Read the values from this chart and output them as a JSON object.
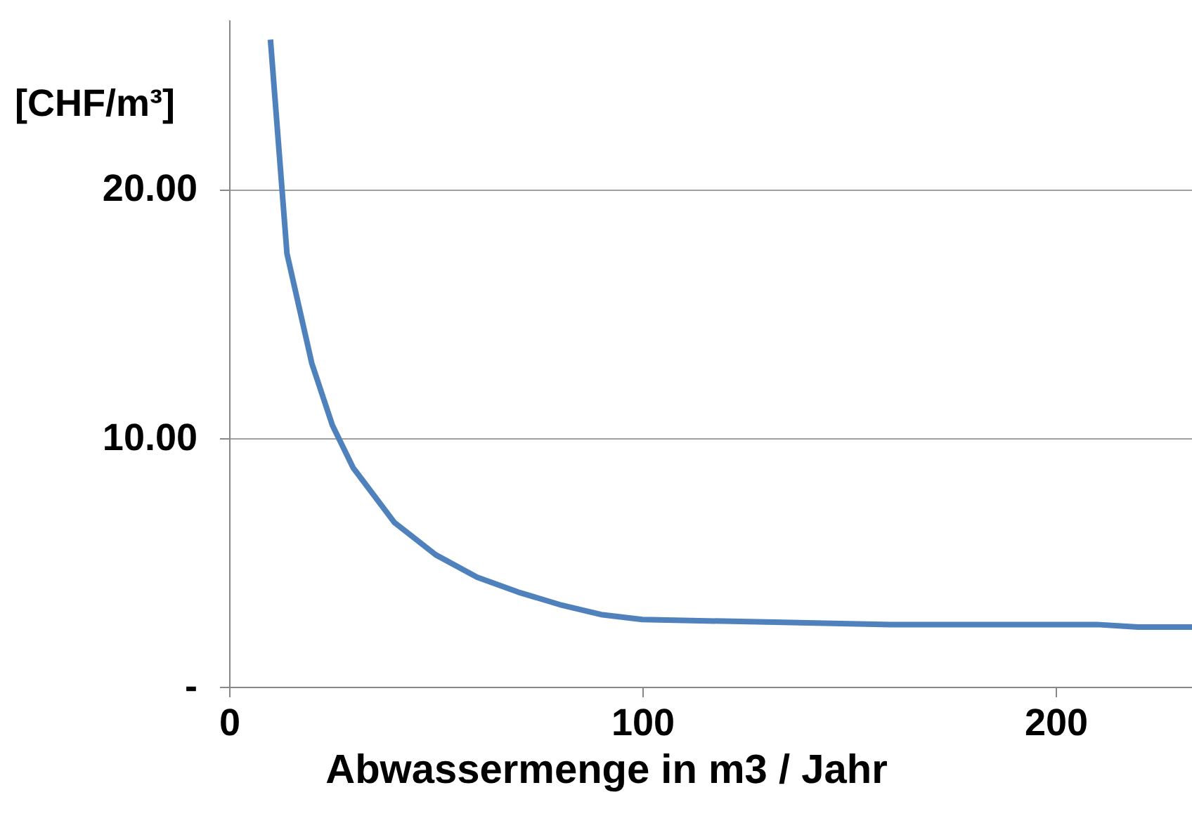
{
  "chart_data": {
    "type": "line",
    "xlabel": "Abwassermenge in m3 / Jahr",
    "ylabel": "[CHF/m³]",
    "x": [
      10,
      14,
      20,
      25,
      30,
      40,
      50,
      60,
      70,
      80,
      90,
      100,
      130,
      160,
      210,
      220,
      233
    ],
    "series": [
      {
        "color": "#4f81bd",
        "values": [
          26.0,
          17.4,
          13.0,
          10.5,
          8.8,
          6.6,
          5.3,
          4.4,
          3.8,
          3.3,
          2.9,
          2.7,
          2.6,
          2.5,
          2.5,
          2.4,
          2.4
        ]
      }
    ],
    "xlim": [
      0,
      233
    ],
    "xticks": [
      0,
      100,
      200
    ],
    "ylim": [
      0,
      26.8
    ],
    "yticks": [
      {
        "value": 0,
        "label": "-"
      },
      {
        "value": 10,
        "label": "10.00"
      },
      {
        "value": 20,
        "label": "20.00"
      }
    ],
    "grid": "y",
    "marker": "none",
    "line_style": "solid"
  }
}
